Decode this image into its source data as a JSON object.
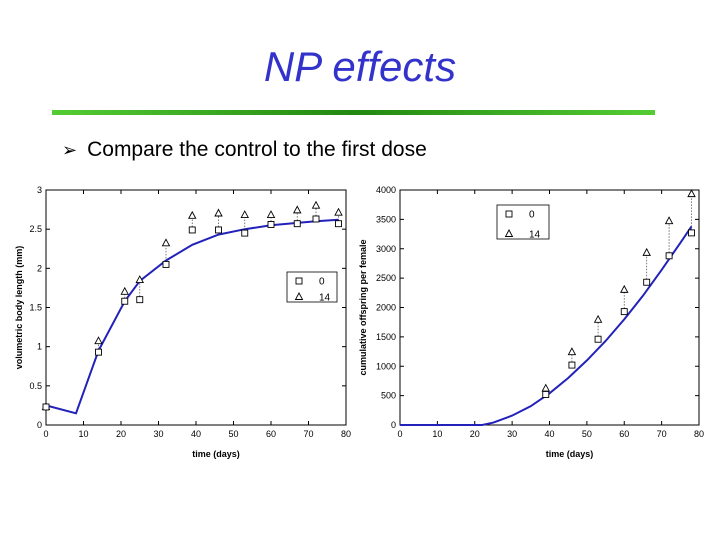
{
  "slide": {
    "title": "NP effects",
    "bullet_icon": "arrow-bullet-icon",
    "bullet_text": "Compare the control to the first dose",
    "accent_color": "#3333cc",
    "rule_color": "#33aa22"
  },
  "chart_data": [
    {
      "type": "scatter",
      "title": "",
      "xlabel": "time (days)",
      "ylabel": "volumetric body length (mm)",
      "xlim": [
        0,
        80
      ],
      "ylim": [
        0,
        3
      ],
      "xticks": [
        "0",
        "10",
        "20",
        "30",
        "40",
        "50",
        "60",
        "70",
        "80"
      ],
      "yticks": [
        "0",
        "0.5",
        "1",
        "1.5",
        "2",
        "2.5",
        "3"
      ],
      "grid": false,
      "legend_position": "center-right",
      "series": [
        {
          "name": "0",
          "marker": "square",
          "x": [
            0,
            14,
            21,
            25,
            32,
            39,
            46,
            53,
            60,
            67,
            72,
            78
          ],
          "y": [
            0.23,
            0.93,
            1.58,
            1.6,
            2.05,
            2.49,
            2.49,
            2.45,
            2.56,
            2.57,
            2.63,
            2.57
          ]
        },
        {
          "name": "14",
          "marker": "triangle",
          "x": [
            0,
            14,
            21,
            25,
            32,
            39,
            46,
            53,
            60,
            67,
            72,
            78
          ],
          "y": [
            0.23,
            1.07,
            1.7,
            1.85,
            2.32,
            2.67,
            2.7,
            2.68,
            2.68,
            2.74,
            2.8,
            2.71
          ]
        },
        {
          "name": "",
          "marker": "line",
          "color": "#2222bb",
          "x": [
            0,
            8,
            14,
            21,
            25,
            32,
            39,
            46,
            53,
            60,
            67,
            72,
            78
          ],
          "y": [
            0.25,
            0.15,
            0.95,
            1.58,
            1.84,
            2.1,
            2.3,
            2.43,
            2.5,
            2.55,
            2.58,
            2.6,
            2.62
          ]
        }
      ]
    },
    {
      "type": "scatter",
      "title": "",
      "xlabel": "time (days)",
      "ylabel": "cumulative offspring per female",
      "xlim": [
        0,
        80
      ],
      "ylim": [
        0,
        4000
      ],
      "xticks": [
        "0",
        "10",
        "20",
        "30",
        "40",
        "50",
        "60",
        "70",
        "80"
      ],
      "yticks": [
        "0",
        "500",
        "1000",
        "1500",
        "2000",
        "2500",
        "3000",
        "3500",
        "4000"
      ],
      "grid": false,
      "legend_position": "top-center",
      "series": [
        {
          "name": "0",
          "marker": "square",
          "x": [
            39,
            46,
            53,
            60,
            66,
            72,
            78
          ],
          "y": [
            520,
            1020,
            1460,
            1930,
            2430,
            2880,
            3270
          ]
        },
        {
          "name": "14",
          "marker": "triangle",
          "x": [
            39,
            46,
            53,
            60,
            66,
            72,
            78
          ],
          "y": [
            620,
            1240,
            1790,
            2300,
            2930,
            3470,
            3930
          ]
        },
        {
          "name": "",
          "marker": "line",
          "color": "#2222bb",
          "x": [
            0,
            22,
            25,
            30,
            35,
            40,
            45,
            50,
            55,
            60,
            65,
            70,
            75,
            78
          ],
          "y": [
            0,
            0,
            40,
            160,
            320,
            540,
            800,
            1100,
            1430,
            1800,
            2200,
            2640,
            3100,
            3380
          ]
        }
      ]
    }
  ]
}
